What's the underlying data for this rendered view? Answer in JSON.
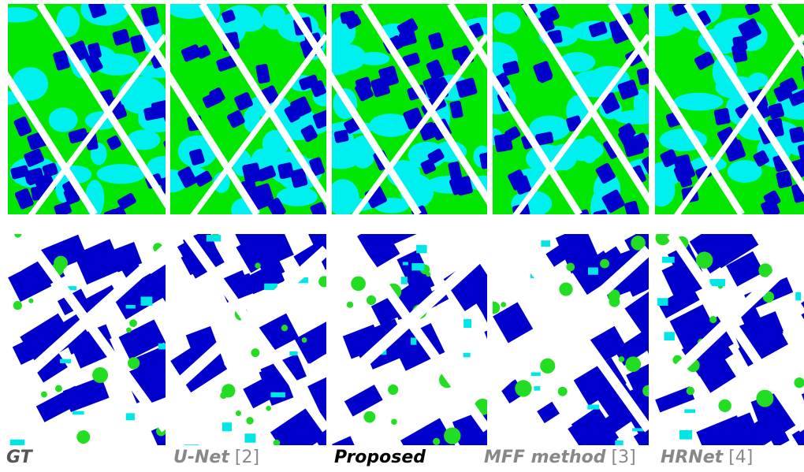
{
  "captions": [
    {
      "name": "GT"
    },
    {
      "name": "U-Net",
      "ref": "[2]"
    },
    {
      "name": "Proposed"
    },
    {
      "name": "MFF method",
      "ref": "[3]"
    },
    {
      "name": "HRNet",
      "ref": "[4]"
    }
  ]
}
